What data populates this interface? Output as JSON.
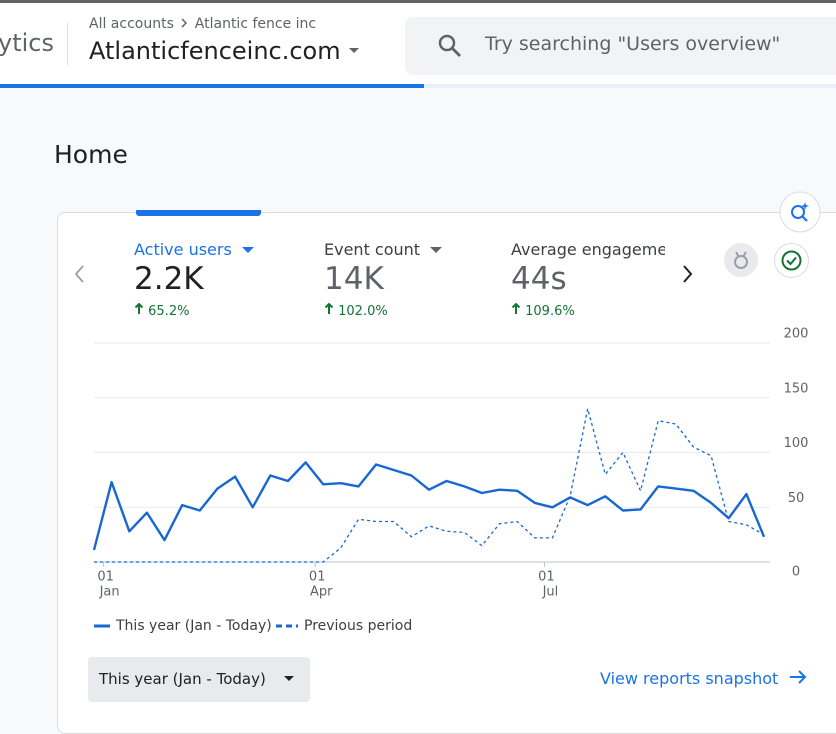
{
  "header": {
    "app_name_fragment": "ytics",
    "breadcrumb": [
      "All accounts",
      "Atlantic fence inc"
    ],
    "property": "Atlanticfenceinc.com",
    "search_placeholder": "Try searching \"Users overview\""
  },
  "page_title": "Home",
  "metrics": [
    {
      "label": "Active users",
      "value": "2.2K",
      "change": "65.2%"
    },
    {
      "label": "Event count",
      "value": "14K",
      "change": "102.0%"
    },
    {
      "label": "Average engagement time",
      "value": "44s",
      "change": "109.6%"
    }
  ],
  "chart_data": {
    "type": "line",
    "categories": [
      null,
      {
        "day": "01",
        "month": "Jan"
      },
      null,
      null,
      null,
      null,
      null,
      null,
      null,
      null,
      null,
      null,
      null,
      {
        "day": "01",
        "month": "Apr"
      },
      null,
      null,
      null,
      null,
      null,
      null,
      null,
      null,
      null,
      null,
      null,
      null,
      {
        "day": "01",
        "month": "Jul"
      },
      null,
      null,
      null,
      null,
      null,
      null,
      null,
      null,
      null,
      null,
      null,
      null
    ],
    "series": [
      {
        "name": "This year (Jan - Today)",
        "color": "#1967d2",
        "dashed": false,
        "values": [
          11,
          73,
          28,
          45,
          20,
          52,
          47,
          67,
          78,
          50,
          79,
          74,
          91,
          71,
          72,
          69,
          89,
          84,
          79,
          66,
          74,
          69,
          63,
          66,
          65,
          54,
          50,
          59,
          52,
          60,
          47,
          48,
          69,
          67,
          65,
          54,
          40,
          62,
          23
        ]
      },
      {
        "name": "Previous period",
        "color": "#1967d2",
        "dashed": true,
        "values": [
          0,
          0,
          0,
          0,
          0,
          0,
          0,
          0,
          0,
          0,
          0,
          0,
          0,
          0,
          13,
          39,
          37,
          37,
          23,
          33,
          28,
          27,
          15,
          35,
          37,
          22,
          22,
          60,
          140,
          80,
          100,
          65,
          129,
          126,
          105,
          97,
          37,
          34,
          25
        ]
      }
    ],
    "ylim": [
      0,
      200
    ],
    "yticks": [
      0,
      50,
      100,
      150,
      200
    ],
    "grid": true,
    "y_axis_side": "right"
  },
  "period_selector": "This year (Jan - Today)",
  "link": "View reports snapshot"
}
